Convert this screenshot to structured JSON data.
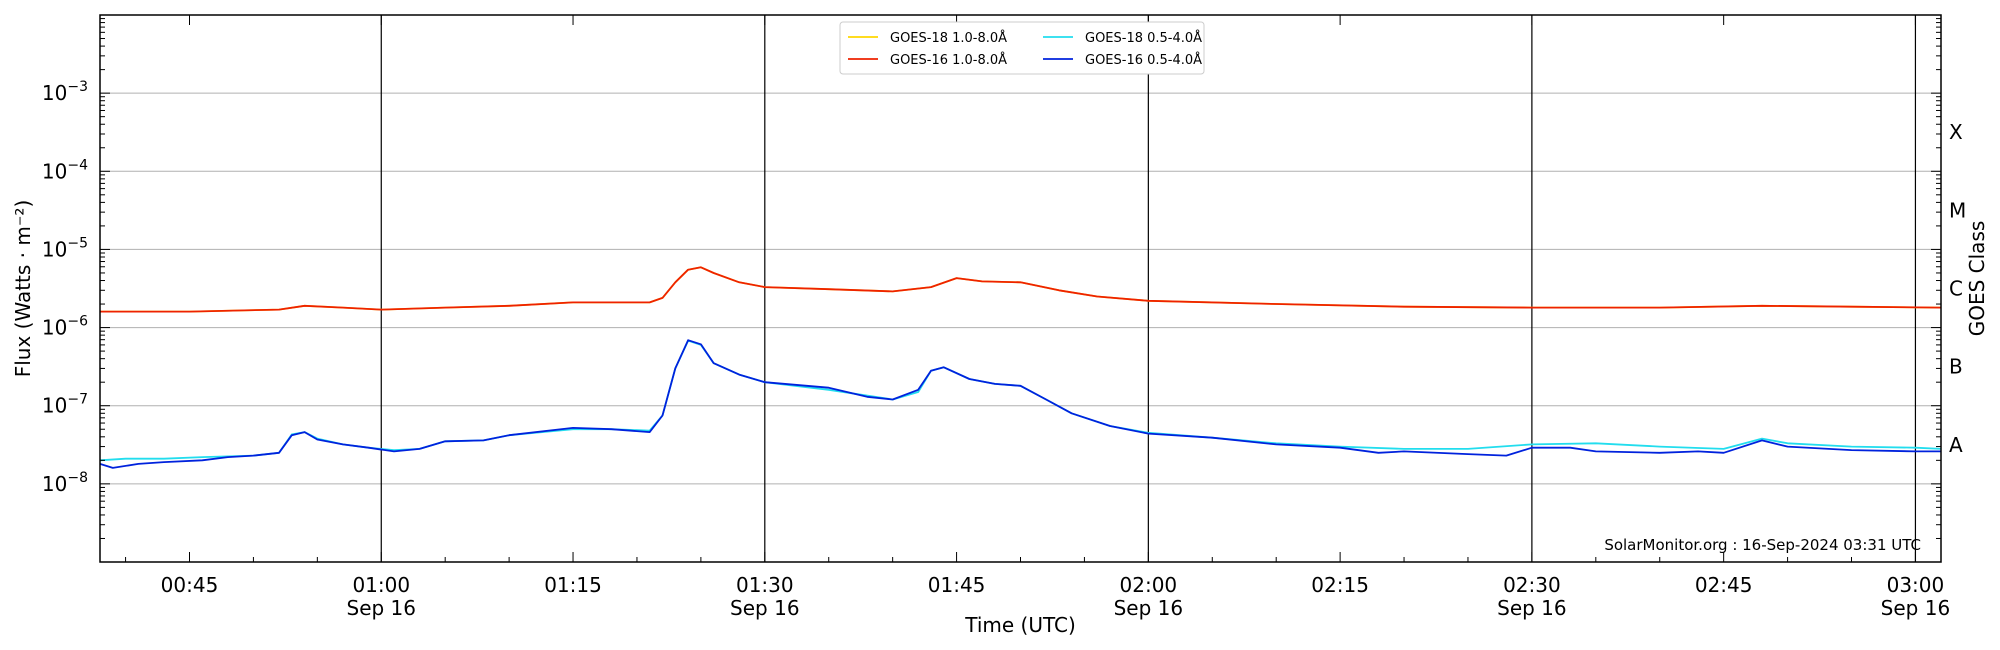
{
  "chart_data": {
    "type": "line",
    "xlabel": "Time (UTC)",
    "ylabel": "Flux (Watts · m⁻²)",
    "ylabel_right": "GOES Class",
    "y_scale": "log",
    "ylim": [
      1e-09,
      0.01
    ],
    "xlim": [
      "00:38",
      "03:02"
    ],
    "grid": "horizontal",
    "legend_position": "top-center",
    "credit": "SolarMonitor.org : 16-Sep-2024 03:31 UTC",
    "x_ticks": [
      {
        "time": "00:45",
        "label": "00:45",
        "sublabel": ""
      },
      {
        "time": "01:00",
        "label": "01:00",
        "sublabel": "Sep 16"
      },
      {
        "time": "01:15",
        "label": "01:15",
        "sublabel": ""
      },
      {
        "time": "01:30",
        "label": "01:30",
        "sublabel": "Sep 16"
      },
      {
        "time": "01:45",
        "label": "01:45",
        "sublabel": ""
      },
      {
        "time": "02:00",
        "label": "02:00",
        "sublabel": "Sep 16"
      },
      {
        "time": "02:15",
        "label": "02:15",
        "sublabel": ""
      },
      {
        "time": "02:30",
        "label": "02:30",
        "sublabel": "Sep 16"
      },
      {
        "time": "02:45",
        "label": "02:45",
        "sublabel": ""
      },
      {
        "time": "03:00",
        "label": "03:00",
        "sublabel": "Sep 16"
      }
    ],
    "vertical_lines": [
      "01:00",
      "01:30",
      "02:00",
      "02:30",
      "03:00"
    ],
    "y_ticks": [
      {
        "exp": -8,
        "base": "10",
        "sup": "−8"
      },
      {
        "exp": -7,
        "base": "10",
        "sup": "−7"
      },
      {
        "exp": -6,
        "base": "10",
        "sup": "−6"
      },
      {
        "exp": -5,
        "base": "10",
        "sup": "−5"
      },
      {
        "exp": -4,
        "base": "10",
        "sup": "−4"
      },
      {
        "exp": -3,
        "base": "10",
        "sup": "−3"
      }
    ],
    "goes_classes": [
      {
        "label": "A",
        "exp": -7.5
      },
      {
        "label": "B",
        "exp": -6.5
      },
      {
        "label": "C",
        "exp": -5.5
      },
      {
        "label": "M",
        "exp": -4.5
      },
      {
        "label": "X",
        "exp": -3.5
      }
    ],
    "series": [
      {
        "name": "GOES-18 1.0-8.0Å",
        "color": "#ffd700",
        "points": [
          [
            "00:38",
            1.6e-06
          ],
          [
            "00:45",
            1.6e-06
          ],
          [
            "00:52",
            1.7e-06
          ],
          [
            "00:54",
            1.9e-06
          ],
          [
            "00:57",
            1.8e-06
          ],
          [
            "01:00",
            1.7e-06
          ],
          [
            "01:05",
            1.8e-06
          ],
          [
            "01:10",
            1.9e-06
          ],
          [
            "01:15",
            2.1e-06
          ],
          [
            "01:21",
            2.1e-06
          ],
          [
            "01:22",
            2.4e-06
          ],
          [
            "01:23",
            3.8e-06
          ],
          [
            "01:24",
            5.5e-06
          ],
          [
            "01:25",
            5.9e-06
          ],
          [
            "01:26",
            5e-06
          ],
          [
            "01:28",
            3.8e-06
          ],
          [
            "01:30",
            3.3e-06
          ],
          [
            "01:35",
            3.1e-06
          ],
          [
            "01:40",
            2.9e-06
          ],
          [
            "01:43",
            3.3e-06
          ],
          [
            "01:45",
            4.3e-06
          ],
          [
            "01:47",
            3.9e-06
          ],
          [
            "01:50",
            3.8e-06
          ],
          [
            "01:53",
            3e-06
          ],
          [
            "01:56",
            2.5e-06
          ],
          [
            "02:00",
            2.2e-06
          ],
          [
            "02:10",
            2e-06
          ],
          [
            "02:20",
            1.85e-06
          ],
          [
            "02:30",
            1.8e-06
          ],
          [
            "02:40",
            1.8e-06
          ],
          [
            "02:48",
            1.9e-06
          ],
          [
            "02:55",
            1.85e-06
          ],
          [
            "03:02",
            1.8e-06
          ]
        ]
      },
      {
        "name": "GOES-16 1.0-8.0Å",
        "color": "#ee2200",
        "points": [
          [
            "00:38",
            1.6e-06
          ],
          [
            "00:45",
            1.6e-06
          ],
          [
            "00:52",
            1.7e-06
          ],
          [
            "00:54",
            1.9e-06
          ],
          [
            "00:57",
            1.8e-06
          ],
          [
            "01:00",
            1.7e-06
          ],
          [
            "01:05",
            1.8e-06
          ],
          [
            "01:10",
            1.9e-06
          ],
          [
            "01:15",
            2.1e-06
          ],
          [
            "01:21",
            2.1e-06
          ],
          [
            "01:22",
            2.4e-06
          ],
          [
            "01:23",
            3.8e-06
          ],
          [
            "01:24",
            5.5e-06
          ],
          [
            "01:25",
            5.9e-06
          ],
          [
            "01:26",
            5e-06
          ],
          [
            "01:28",
            3.8e-06
          ],
          [
            "01:30",
            3.3e-06
          ],
          [
            "01:35",
            3.1e-06
          ],
          [
            "01:40",
            2.9e-06
          ],
          [
            "01:43",
            3.3e-06
          ],
          [
            "01:45",
            4.3e-06
          ],
          [
            "01:47",
            3.9e-06
          ],
          [
            "01:50",
            3.8e-06
          ],
          [
            "01:53",
            3e-06
          ],
          [
            "01:56",
            2.5e-06
          ],
          [
            "02:00",
            2.2e-06
          ],
          [
            "02:10",
            2e-06
          ],
          [
            "02:20",
            1.85e-06
          ],
          [
            "02:30",
            1.8e-06
          ],
          [
            "02:40",
            1.8e-06
          ],
          [
            "02:48",
            1.9e-06
          ],
          [
            "02:55",
            1.85e-06
          ],
          [
            "03:02",
            1.8e-06
          ]
        ]
      },
      {
        "name": "GOES-18 0.5-4.0Å",
        "color": "#22ddee",
        "points": [
          [
            "00:38",
            2e-08
          ],
          [
            "00:40",
            2.1e-08
          ],
          [
            "00:43",
            2.1e-08
          ],
          [
            "00:46",
            2.2e-08
          ],
          [
            "00:50",
            2.3e-08
          ],
          [
            "00:52",
            2.5e-08
          ],
          [
            "00:53",
            4.3e-08
          ],
          [
            "00:54",
            4.6e-08
          ],
          [
            "00:55",
            3.8e-08
          ],
          [
            "00:57",
            3.2e-08
          ],
          [
            "00:59",
            2.9e-08
          ],
          [
            "01:01",
            2.7e-08
          ],
          [
            "01:03",
            2.8e-08
          ],
          [
            "01:05",
            3.5e-08
          ],
          [
            "01:08",
            3.6e-08
          ],
          [
            "01:10",
            4.2e-08
          ],
          [
            "01:15",
            5e-08
          ],
          [
            "01:18",
            5e-08
          ],
          [
            "01:21",
            4.8e-08
          ],
          [
            "01:22",
            7.5e-08
          ],
          [
            "01:23",
            3e-07
          ],
          [
            "01:24",
            6.8e-07
          ],
          [
            "01:25",
            6e-07
          ],
          [
            "01:26",
            3.5e-07
          ],
          [
            "01:28",
            2.5e-07
          ],
          [
            "01:30",
            2e-07
          ],
          [
            "01:35",
            1.6e-07
          ],
          [
            "01:40",
            1.2e-07
          ],
          [
            "01:42",
            1.5e-07
          ],
          [
            "01:43",
            2.8e-07
          ],
          [
            "01:44",
            3.1e-07
          ],
          [
            "01:46",
            2.2e-07
          ],
          [
            "01:48",
            1.9e-07
          ],
          [
            "01:50",
            1.8e-07
          ],
          [
            "01:52",
            1.2e-07
          ],
          [
            "01:54",
            8e-08
          ],
          [
            "01:57",
            5.5e-08
          ],
          [
            "02:00",
            4.5e-08
          ],
          [
            "02:05",
            3.9e-08
          ],
          [
            "02:10",
            3.3e-08
          ],
          [
            "02:15",
            3e-08
          ],
          [
            "02:20",
            2.8e-08
          ],
          [
            "02:25",
            2.8e-08
          ],
          [
            "02:30",
            3.2e-08
          ],
          [
            "02:35",
            3.3e-08
          ],
          [
            "02:40",
            3e-08
          ],
          [
            "02:45",
            2.8e-08
          ],
          [
            "02:48",
            3.8e-08
          ],
          [
            "02:50",
            3.3e-08
          ],
          [
            "02:55",
            3e-08
          ],
          [
            "03:00",
            2.9e-08
          ],
          [
            "03:02",
            2.8e-08
          ]
        ]
      },
      {
        "name": "GOES-16 0.5-4.0Å",
        "color": "#0022dd",
        "points": [
          [
            "00:38",
            1.8e-08
          ],
          [
            "00:39",
            1.6e-08
          ],
          [
            "00:41",
            1.8e-08
          ],
          [
            "00:43",
            1.9e-08
          ],
          [
            "00:46",
            2e-08
          ],
          [
            "00:48",
            2.2e-08
          ],
          [
            "00:50",
            2.3e-08
          ],
          [
            "00:52",
            2.5e-08
          ],
          [
            "00:53",
            4.2e-08
          ],
          [
            "00:54",
            4.6e-08
          ],
          [
            "00:55",
            3.7e-08
          ],
          [
            "00:57",
            3.2e-08
          ],
          [
            "00:59",
            2.9e-08
          ],
          [
            "01:01",
            2.6e-08
          ],
          [
            "01:03",
            2.8e-08
          ],
          [
            "01:05",
            3.5e-08
          ],
          [
            "01:08",
            3.6e-08
          ],
          [
            "01:10",
            4.2e-08
          ],
          [
            "01:15",
            5.2e-08
          ],
          [
            "01:18",
            5e-08
          ],
          [
            "01:21",
            4.6e-08
          ],
          [
            "01:22",
            7.5e-08
          ],
          [
            "01:23",
            3e-07
          ],
          [
            "01:24",
            6.9e-07
          ],
          [
            "01:25",
            6.1e-07
          ],
          [
            "01:26",
            3.5e-07
          ],
          [
            "01:28",
            2.5e-07
          ],
          [
            "01:30",
            2e-07
          ],
          [
            "01:35",
            1.7e-07
          ],
          [
            "01:38",
            1.3e-07
          ],
          [
            "01:40",
            1.2e-07
          ],
          [
            "01:42",
            1.6e-07
          ],
          [
            "01:43",
            2.8e-07
          ],
          [
            "01:44",
            3.1e-07
          ],
          [
            "01:46",
            2.2e-07
          ],
          [
            "01:48",
            1.9e-07
          ],
          [
            "01:50",
            1.8e-07
          ],
          [
            "01:52",
            1.2e-07
          ],
          [
            "01:54",
            8e-08
          ],
          [
            "01:57",
            5.5e-08
          ],
          [
            "02:00",
            4.4e-08
          ],
          [
            "02:05",
            3.9e-08
          ],
          [
            "02:10",
            3.2e-08
          ],
          [
            "02:15",
            2.9e-08
          ],
          [
            "02:18",
            2.5e-08
          ],
          [
            "02:20",
            2.6e-08
          ],
          [
            "02:25",
            2.4e-08
          ],
          [
            "02:28",
            2.3e-08
          ],
          [
            "02:30",
            2.9e-08
          ],
          [
            "02:33",
            2.9e-08
          ],
          [
            "02:35",
            2.6e-08
          ],
          [
            "02:40",
            2.5e-08
          ],
          [
            "02:43",
            2.6e-08
          ],
          [
            "02:45",
            2.5e-08
          ],
          [
            "02:48",
            3.6e-08
          ],
          [
            "02:50",
            3e-08
          ],
          [
            "02:55",
            2.7e-08
          ],
          [
            "03:00",
            2.6e-08
          ],
          [
            "03:02",
            2.6e-08
          ]
        ]
      }
    ]
  }
}
